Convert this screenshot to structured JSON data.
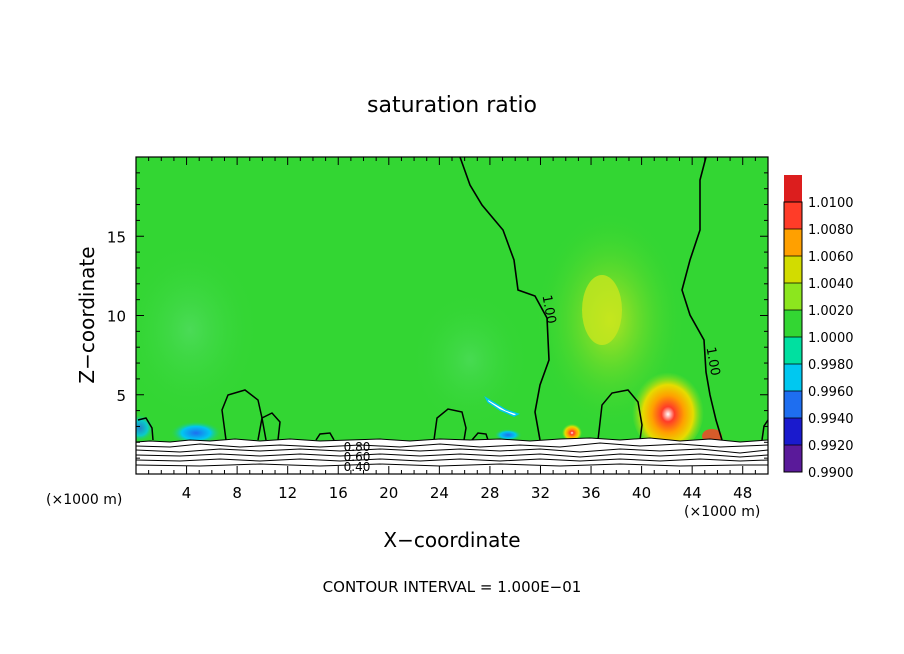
{
  "chart_data": {
    "type": "heatmap",
    "title": "saturation ratio",
    "xlabel": "X−coordinate",
    "ylabel": "Z−coordinate",
    "x_unit_left": "(×1000 m)",
    "x_unit_right": "(×1000 m)",
    "footer": "CONTOUR INTERVAL = 1.000E−01",
    "xlim": [
      0,
      50
    ],
    "ylim": [
      0,
      20
    ],
    "x_ticks": [
      4,
      8,
      12,
      16,
      20,
      24,
      28,
      32,
      36,
      40,
      44,
      48
    ],
    "x_tick_labels": [
      "4",
      "8",
      "12",
      "16",
      "20",
      "24",
      "28",
      "32",
      "36",
      "40",
      "44",
      "48"
    ],
    "y_ticks": [
      5,
      10,
      15
    ],
    "y_tick_labels": [
      "5",
      "10",
      "15"
    ],
    "colorbar": {
      "levels": [
        "0.9900",
        "0.9920",
        "0.9940",
        "0.9960",
        "0.9980",
        "1.0000",
        "1.0020",
        "1.0040",
        "1.0060",
        "1.0080",
        "1.0100"
      ],
      "colors": [
        "#5a1a9a",
        "#1a1acd",
        "#1e6ef0",
        "#00c8f0",
        "#00e0a0",
        "#33d633",
        "#8ce61e",
        "#d2dc00",
        "#ffa000",
        "#ff3c28",
        "#dc1e1e"
      ]
    },
    "contour_labels": [
      "1.00",
      "1.00",
      "0.80",
      "0.60",
      "0.40"
    ],
    "annotations": [
      {
        "text": "1.00",
        "x": 33,
        "z": 10.5
      },
      {
        "text": "1.00",
        "x": 45,
        "z": 8.0
      },
      {
        "text": "0.80",
        "x": 17.5,
        "z": 1.6
      },
      {
        "text": "0.60",
        "x": 17.5,
        "z": 1.0
      },
      {
        "text": "0.40",
        "x": 17.5,
        "z": 0.3
      }
    ]
  }
}
